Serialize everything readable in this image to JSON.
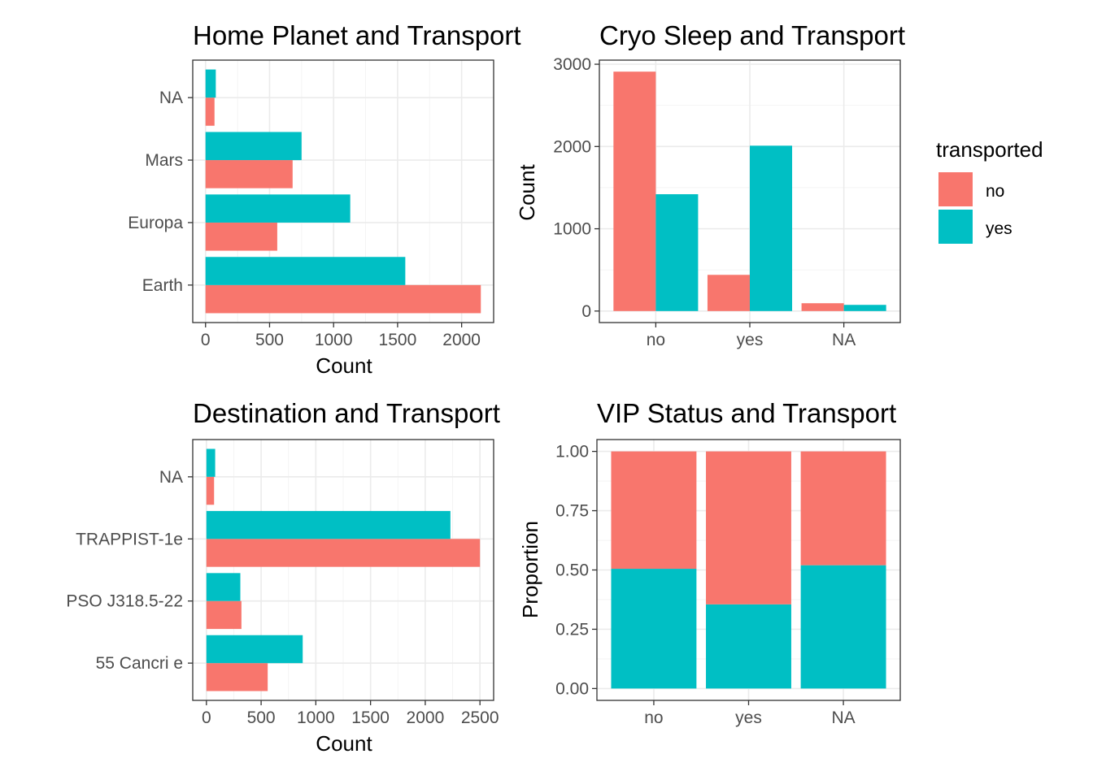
{
  "colors": {
    "no": "#F8766D",
    "yes": "#00BFC4"
  },
  "legend": {
    "title": "transported",
    "items": [
      {
        "label": "no",
        "key": "no"
      },
      {
        "label": "yes",
        "key": "yes"
      }
    ]
  },
  "chart_data": [
    {
      "id": "home-planet",
      "type": "bar",
      "orientation": "horizontal",
      "position": "dodge",
      "title": "Home Planet and Transport",
      "xlabel": "Count",
      "ylabel": "",
      "categories": [
        "Earth",
        "Europa",
        "Mars",
        "NA"
      ],
      "series": [
        {
          "name": "no",
          "values": [
            2150,
            560,
            680,
            70
          ]
        },
        {
          "name": "yes",
          "values": [
            1560,
            1130,
            750,
            80
          ]
        }
      ],
      "xlim": [
        -100,
        2250
      ],
      "xticks": [
        0,
        500,
        1000,
        1500,
        2000
      ],
      "xticklabels": [
        "0",
        "500",
        "1000",
        "1500",
        "2000"
      ],
      "grid": true
    },
    {
      "id": "cryo-sleep",
      "type": "bar",
      "orientation": "vertical",
      "position": "dodge",
      "title": "Cryo Sleep and Transport",
      "xlabel": "",
      "ylabel": "Count",
      "categories": [
        "no",
        "yes",
        "NA"
      ],
      "series": [
        {
          "name": "no",
          "values": [
            2910,
            440,
            95
          ]
        },
        {
          "name": "yes",
          "values": [
            1420,
            2010,
            75
          ]
        }
      ],
      "ylim": [
        -140,
        3050
      ],
      "yticks": [
        0,
        1000,
        2000,
        3000
      ],
      "yticklabels": [
        "0",
        "1000",
        "2000",
        "3000"
      ],
      "grid": true
    },
    {
      "id": "destination",
      "type": "bar",
      "orientation": "horizontal",
      "position": "dodge",
      "title": "Destination and Transport",
      "xlabel": "Count",
      "ylabel": "",
      "categories": [
        "55 Cancri e",
        "PSO J318.5-22",
        "TRAPPIST-1e",
        "NA"
      ],
      "series": [
        {
          "name": "no",
          "values": [
            560,
            320,
            2500,
            70
          ]
        },
        {
          "name": "yes",
          "values": [
            880,
            310,
            2230,
            80
          ]
        }
      ],
      "xlim": [
        -125,
        2625
      ],
      "xticks": [
        0,
        500,
        1000,
        1500,
        2000,
        2500
      ],
      "xticklabels": [
        "0",
        "500",
        "1000",
        "1500",
        "2000",
        "2500"
      ],
      "grid": true
    },
    {
      "id": "vip-status",
      "type": "bar",
      "orientation": "vertical",
      "position": "fill",
      "title": "VIP Status and Transport",
      "xlabel": "",
      "ylabel": "Proportion",
      "categories": [
        "no",
        "yes",
        "NA"
      ],
      "series": [
        {
          "name": "no",
          "values": [
            0.495,
            0.645,
            0.48
          ]
        },
        {
          "name": "yes",
          "values": [
            0.505,
            0.355,
            0.52
          ]
        }
      ],
      "ylim": [
        -0.05,
        1.05
      ],
      "yticks": [
        0,
        0.25,
        0.5,
        0.75,
        1.0
      ],
      "yticklabels": [
        "0.00",
        "0.25",
        "0.50",
        "0.75",
        "1.00"
      ],
      "grid": true
    }
  ]
}
